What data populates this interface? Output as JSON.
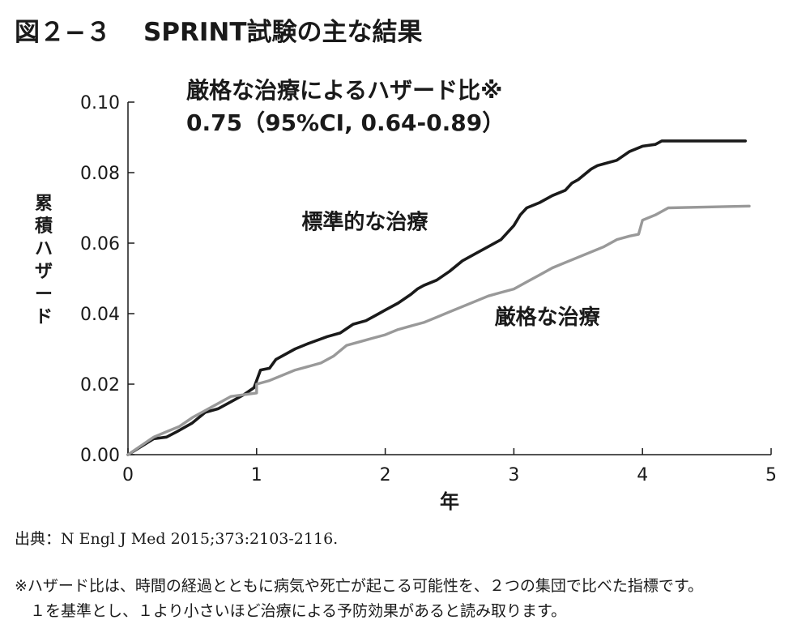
{
  "header": {
    "figure_number": "図２−３",
    "title": "SPRINT試験の主な結果"
  },
  "chart_data": {
    "type": "line",
    "xlabel": "年",
    "ylabel": "累積ハザード",
    "xlim": [
      0,
      5
    ],
    "ylim": [
      0,
      0.1
    ],
    "x_ticks": [
      "0",
      "1",
      "2",
      "3",
      "4",
      "5"
    ],
    "y_ticks": [
      "0.00",
      "0.02",
      "0.04",
      "0.06",
      "0.08",
      "0.10"
    ],
    "grid": false,
    "annotation_lines": [
      "厳格な治療によるハザード比※",
      "0.75（95%CI, 0.64-0.89）"
    ],
    "series": [
      {
        "name": "標準的な治療",
        "color": "#1a1a1a",
        "points": [
          [
            0,
            0
          ],
          [
            0.2,
            0.0045
          ],
          [
            0.3,
            0.005
          ],
          [
            0.38,
            0.0065
          ],
          [
            0.5,
            0.009
          ],
          [
            0.6,
            0.012
          ],
          [
            0.7,
            0.013
          ],
          [
            0.8,
            0.015
          ],
          [
            0.9,
            0.017
          ],
          [
            0.98,
            0.019
          ],
          [
            1.03,
            0.024
          ],
          [
            1.1,
            0.0245
          ],
          [
            1.15,
            0.027
          ],
          [
            1.3,
            0.03
          ],
          [
            1.4,
            0.0315
          ],
          [
            1.55,
            0.0335
          ],
          [
            1.65,
            0.0345
          ],
          [
            1.75,
            0.037
          ],
          [
            1.85,
            0.038
          ],
          [
            1.95,
            0.04
          ],
          [
            2.0,
            0.041
          ],
          [
            2.1,
            0.043
          ],
          [
            2.2,
            0.0455
          ],
          [
            2.25,
            0.047
          ],
          [
            2.3,
            0.048
          ],
          [
            2.4,
            0.0495
          ],
          [
            2.5,
            0.052
          ],
          [
            2.6,
            0.055
          ],
          [
            2.7,
            0.057
          ],
          [
            2.8,
            0.059
          ],
          [
            2.9,
            0.061
          ],
          [
            3.0,
            0.065
          ],
          [
            3.05,
            0.068
          ],
          [
            3.1,
            0.07
          ],
          [
            3.2,
            0.0715
          ],
          [
            3.3,
            0.0735
          ],
          [
            3.4,
            0.075
          ],
          [
            3.45,
            0.077
          ],
          [
            3.5,
            0.078
          ],
          [
            3.6,
            0.081
          ],
          [
            3.65,
            0.082
          ],
          [
            3.7,
            0.0825
          ],
          [
            3.8,
            0.0835
          ],
          [
            3.9,
            0.086
          ],
          [
            4.0,
            0.0875
          ],
          [
            4.1,
            0.088
          ],
          [
            4.15,
            0.089
          ],
          [
            4.8,
            0.089
          ]
        ]
      },
      {
        "name": "厳格な治療",
        "color": "#999999",
        "points": [
          [
            0,
            0
          ],
          [
            0.2,
            0.005
          ],
          [
            0.3,
            0.0065
          ],
          [
            0.4,
            0.008
          ],
          [
            0.5,
            0.0105
          ],
          [
            0.6,
            0.0125
          ],
          [
            0.7,
            0.0145
          ],
          [
            0.8,
            0.0165
          ],
          [
            0.9,
            0.017
          ],
          [
            1.0,
            0.0175
          ],
          [
            1.0,
            0.02
          ],
          [
            1.1,
            0.021
          ],
          [
            1.2,
            0.0225
          ],
          [
            1.3,
            0.024
          ],
          [
            1.4,
            0.025
          ],
          [
            1.5,
            0.026
          ],
          [
            1.6,
            0.028
          ],
          [
            1.7,
            0.031
          ],
          [
            1.8,
            0.032
          ],
          [
            1.9,
            0.033
          ],
          [
            2.0,
            0.034
          ],
          [
            2.1,
            0.0355
          ],
          [
            2.2,
            0.0365
          ],
          [
            2.3,
            0.0375
          ],
          [
            2.4,
            0.039
          ],
          [
            2.5,
            0.0405
          ],
          [
            2.6,
            0.042
          ],
          [
            2.7,
            0.0435
          ],
          [
            2.8,
            0.045
          ],
          [
            2.9,
            0.046
          ],
          [
            3.0,
            0.047
          ],
          [
            3.1,
            0.049
          ],
          [
            3.2,
            0.051
          ],
          [
            3.3,
            0.053
          ],
          [
            3.4,
            0.0545
          ],
          [
            3.5,
            0.056
          ],
          [
            3.6,
            0.0575
          ],
          [
            3.7,
            0.059
          ],
          [
            3.8,
            0.061
          ],
          [
            3.9,
            0.062
          ],
          [
            3.97,
            0.0625
          ],
          [
            4.0,
            0.0665
          ],
          [
            4.1,
            0.068
          ],
          [
            4.2,
            0.07
          ],
          [
            4.83,
            0.0705
          ]
        ]
      }
    ],
    "series_labels": [
      {
        "text": "標準的な治療",
        "x": 1.35,
        "y": 0.064
      },
      {
        "text": "厳格な治療",
        "x": 2.85,
        "y": 0.037
      }
    ]
  },
  "footer": {
    "source": "出典：N Engl J Med 2015;373:2103-2116.",
    "note_line1": "※ハザード比は、時間の経過とともに病気や死亡が起こる可能性を、２つの集団で比べた指標です。",
    "note_line2": "１を基準とし、１より小さいほど治療による予防効果があると読み取ります。"
  }
}
